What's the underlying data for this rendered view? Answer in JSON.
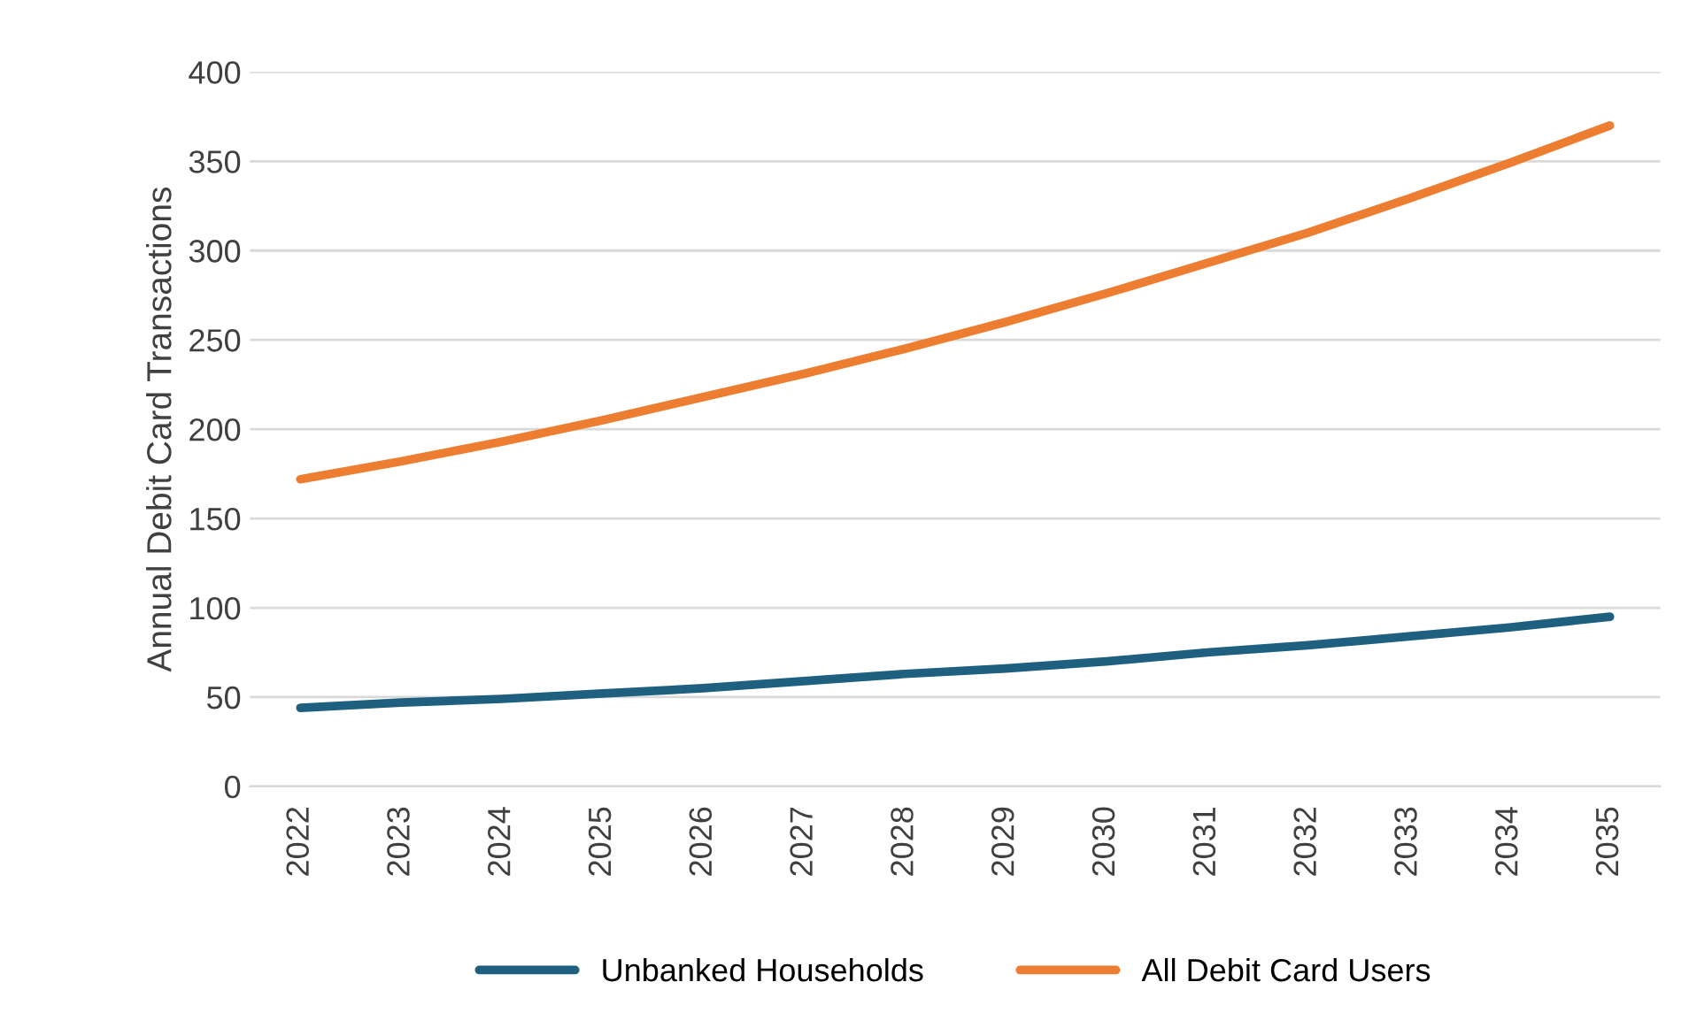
{
  "chart_data": {
    "type": "line",
    "ylabel": "Annual Debit Card Transactions",
    "categories": [
      "2022",
      "2023",
      "2024",
      "2025",
      "2026",
      "2027",
      "2028",
      "2029",
      "2030",
      "2031",
      "2032",
      "2033",
      "2034",
      "2035"
    ],
    "series": [
      {
        "name": "Unbanked Households",
        "color": "#1f5f7f",
        "values": [
          44,
          47,
          49,
          52,
          55,
          59,
          63,
          66,
          70,
          75,
          79,
          84,
          89,
          95
        ]
      },
      {
        "name": "All Debit Card Users",
        "color": "#ed7d31",
        "values": [
          172,
          182,
          193,
          205,
          218,
          231,
          245,
          260,
          276,
          293,
          310,
          329,
          349,
          370
        ]
      }
    ],
    "ylim": [
      0,
      400
    ],
    "yticks": [
      0,
      50,
      100,
      150,
      200,
      250,
      300,
      350,
      400
    ],
    "grid": "y",
    "legend": "bottom",
    "marker": "none",
    "line_style": "solid"
  }
}
